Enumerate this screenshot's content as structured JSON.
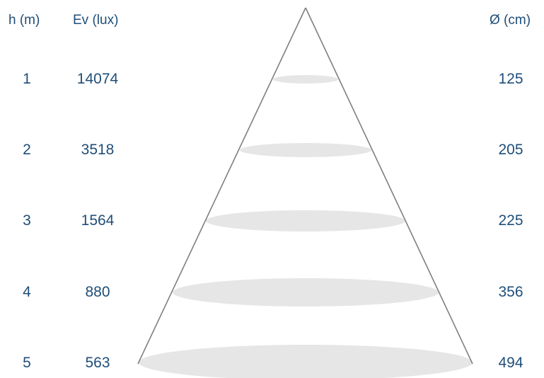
{
  "colors": {
    "text": "#1f4e79",
    "cone_line": "#7f7f7f",
    "spot_fill": "#e6e6e6"
  },
  "headers": {
    "height": "h (m)",
    "illuminance": "Ev (lux)",
    "diameter": "Ø (cm)"
  },
  "rows": [
    {
      "h": "1",
      "ev": "14074",
      "d": "125"
    },
    {
      "h": "2",
      "ev": "3518",
      "d": "205"
    },
    {
      "h": "3",
      "ev": "1564",
      "d": "225"
    },
    {
      "h": "4",
      "ev": "880",
      "d": "356"
    },
    {
      "h": "5",
      "ev": "563",
      "d": "494"
    }
  ]
}
